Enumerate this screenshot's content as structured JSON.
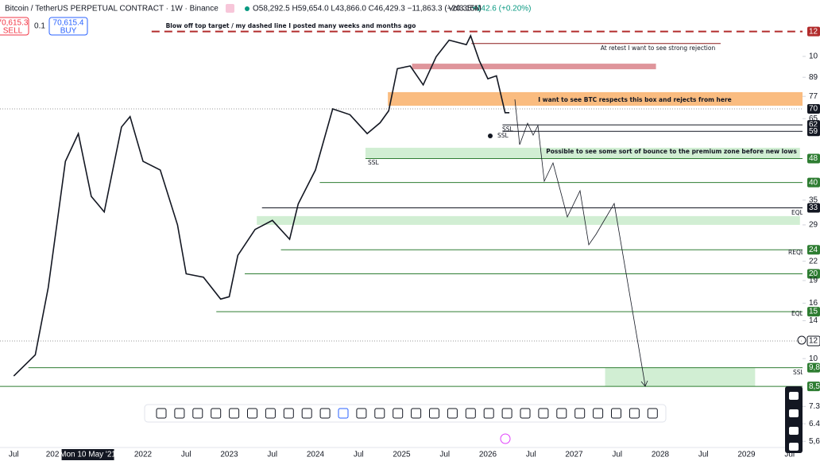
{
  "header": {
    "symbol": "Bitcoin / TetherUS PERPETUAL CONTRACT · 1W · Binance",
    "ohlc": "O58,292.5 H59,654.0 L43,866.0 C46,429.3 −11,863.3 (−20.35%)",
    "volume": "Vol3.15M",
    "volume_change": "+142.6 (+0.20%)"
  },
  "trade": {
    "sell_price": "70,615.3",
    "sell": "SELL",
    "spread": "0.1",
    "buy_price": "70,615.4",
    "buy": "BUY"
  },
  "annotations": {
    "blow_off": "Blow off top target / my dashed line I posted many weeks and months ago",
    "retest": "At retest I want to see strong rejection",
    "box": "I want to see BTC respects this box and rejects from here",
    "bounce": "Possible to see some sort of bounce to the premium zone before new lows",
    "ssl_1": "SSL",
    "ssl_2": "SSL",
    "ssl_3": "SSL",
    "ssl_4": "SSL",
    "eql_1": "EQL",
    "reql": "REQL",
    "eql_2": "EQL"
  },
  "chart": {
    "price_times": [
      2020.5,
      2020.75,
      2020.9,
      2021.0,
      2021.1,
      2021.25,
      2021.4,
      2021.55,
      2021.75,
      2021.85,
      2022.0,
      2022.2,
      2022.4,
      2022.5,
      2022.7,
      2022.9,
      2023.0,
      2023.1,
      2023.3,
      2023.5,
      2023.7,
      2023.8,
      2024.0,
      2024.2,
      2024.4,
      2024.6,
      2024.75,
      2024.85,
      2024.95,
      2025.1,
      2025.25,
      2025.4,
      2025.55,
      2025.75,
      2025.8,
      2025.9,
      2026.0,
      2026.1,
      2026.2,
      2026.25
    ],
    "prices": [
      9.2,
      10.8,
      18,
      29,
      47,
      58,
      36,
      32,
      61,
      66,
      47,
      44,
      29,
      20,
      19.5,
      16.5,
      16.8,
      23,
      28,
      30,
      26,
      34,
      44,
      70,
      67,
      58,
      63,
      69,
      95,
      97,
      84,
      104,
      118,
      114,
      122,
      101,
      88,
      90,
      68,
      68
    ],
    "zones": [
      {
        "from": 2024.84,
        "to": 2029.65,
        "low": 71.7,
        "high": 79.5,
        "color": "#f9b06a"
      },
      {
        "from": 2025.12,
        "to": 2027.95,
        "low": 94.6,
        "high": 98.7,
        "color": "#d9838a"
      },
      {
        "from": 2024.58,
        "to": 2029.62,
        "low": 48,
        "high": 52.1,
        "color": "#c9ebcb"
      },
      {
        "from": 2023.32,
        "to": 2029.62,
        "low": 29,
        "high": 31,
        "color": "#c9ebcb"
      },
      {
        "from": 2027.36,
        "to": 2029.1,
        "low": 8.5,
        "high": 9.8,
        "color": "#c9ebcb"
      }
    ],
    "levels": [
      {
        "value": 126,
        "label": "12",
        "from": 2022.1,
        "color": "#b22c2c",
        "dash": true
      },
      {
        "value": 115,
        "from": 2025.81,
        "to": 2028.7,
        "color": "#8b1a1a"
      },
      {
        "value": 70,
        "label": "70",
        "from": 2020.3,
        "color": "#999999",
        "dotted": true,
        "tag": "#131722"
      },
      {
        "value": 62,
        "label": "62",
        "from": 2026.17,
        "color": "#131722"
      },
      {
        "value": 59,
        "label": "59",
        "from": 2026.17,
        "color": "#131722"
      },
      {
        "value": 48,
        "label": "48",
        "from": 2024.58,
        "color": "#2e7d32"
      },
      {
        "value": 40,
        "label": "40",
        "from": 2024.05,
        "color": "#2e7d32"
      },
      {
        "value": 33,
        "label": "33",
        "from": 2023.38,
        "color": "#131722"
      },
      {
        "value": 24,
        "label": "24",
        "from": 2023.6,
        "color": "#2e7d32"
      },
      {
        "value": 20,
        "label": "20",
        "from": 2023.18,
        "color": "#2e7d32"
      },
      {
        "value": 15,
        "label": "15",
        "from": 2022.85,
        "color": "#2e7d32"
      },
      {
        "value": 12,
        "label": "12",
        "from": 2020.3,
        "color": "#999999",
        "dotted": true,
        "tag": "#ffffff"
      },
      {
        "value": 9.8,
        "label": "9,8",
        "from": 2020.67,
        "color": "#2e7d32"
      },
      {
        "value": 8.5,
        "label": "8,5",
        "from": 2020.3,
        "color": "#2e7d32"
      }
    ],
    "price_ticks": [
      {
        "value": 104.3,
        "label": "10"
      },
      89,
      77,
      65,
      35,
      29,
      22,
      19,
      16,
      14,
      {
        "value": 10.5,
        "label": "10"
      },
      7.3,
      6.4,
      {
        "value": 5.6,
        "label": "5,6"
      }
    ],
    "time_ticks": [
      {
        "value": 2020.5,
        "label": "Jul"
      },
      {
        "value": 2020.95,
        "label": "202"
      },
      {
        "value": 2022,
        "label": "2022"
      },
      {
        "value": 2022.5,
        "label": "Jul"
      },
      {
        "value": 2023,
        "label": "2023"
      },
      {
        "value": 2023.5,
        "label": "Jul"
      },
      {
        "value": 2024,
        "label": "2024"
      },
      {
        "value": 2024.5,
        "label": "Jul"
      },
      {
        "value": 2025,
        "label": "2025"
      },
      {
        "value": 2025.5,
        "label": "Jul"
      },
      {
        "value": 2026,
        "label": "2026"
      },
      {
        "value": 2026.5,
        "label": "Jul"
      },
      {
        "value": 2027,
        "label": "2027"
      },
      {
        "value": 2027.5,
        "label": "Jul"
      },
      {
        "value": 2028,
        "label": "2028"
      },
      {
        "value": 2028.5,
        "label": "Jul"
      },
      {
        "value": 2029,
        "label": "2029"
      },
      {
        "value": 2029.5,
        "label": "Jul"
      }
    ],
    "crosshair_time": {
      "value": 2021.36,
      "label": "Mon 10 May '21"
    }
  }
}
